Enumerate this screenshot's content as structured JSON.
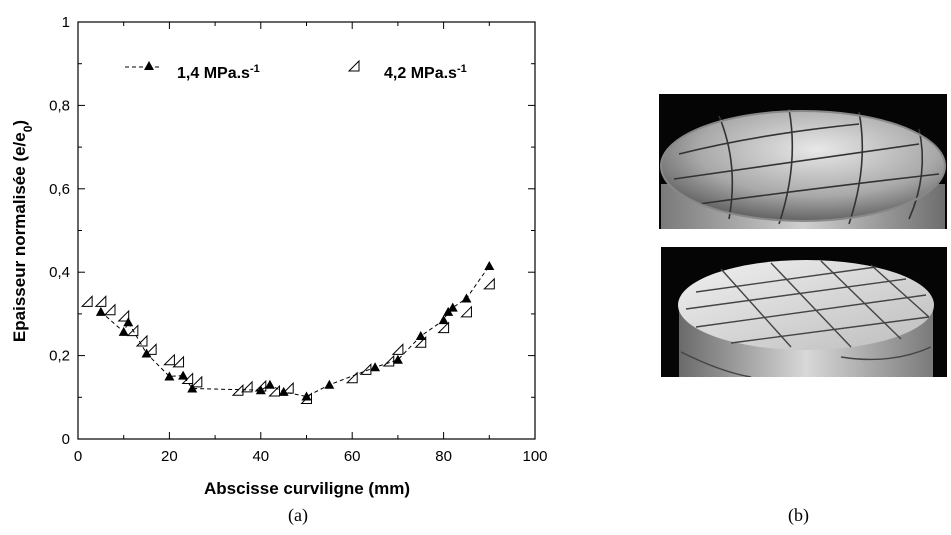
{
  "chart_data": {
    "type": "scatter",
    "xlabel": "Abscisse curviligne (mm)",
    "ylabel_main": "Epaisseur normalisée (e/e",
    "ylabel_sub": "0",
    "ylabel_end": ")",
    "xlim": [
      0,
      100
    ],
    "ylim": [
      0,
      1
    ],
    "x_ticks": [
      "0",
      "20",
      "40",
      "60",
      "80",
      "100"
    ],
    "y_ticks": [
      "0",
      "0,2",
      "0,4",
      "0,6",
      "0,8",
      "1"
    ],
    "grid": false,
    "legend_position": "top",
    "series": [
      {
        "name_main": "1,4 MPa.s",
        "name_sup": "-1",
        "marker": "filled-triangle",
        "line": "dashed",
        "points": [
          [
            5,
            0.305
          ],
          [
            10,
            0.257
          ],
          [
            11,
            0.28
          ],
          [
            15,
            0.205
          ],
          [
            20,
            0.15
          ],
          [
            23,
            0.152
          ],
          [
            25,
            0.121
          ],
          [
            40,
            0.117
          ],
          [
            42,
            0.13
          ],
          [
            45,
            0.113
          ],
          [
            50,
            0.102
          ],
          [
            55,
            0.13
          ],
          [
            65,
            0.172
          ],
          [
            70,
            0.19
          ],
          [
            75,
            0.247
          ],
          [
            80,
            0.285
          ],
          [
            81,
            0.305
          ],
          [
            82,
            0.315
          ],
          [
            85,
            0.337
          ],
          [
            90,
            0.415
          ]
        ]
      },
      {
        "name_main": "4,2 MPa.s",
        "name_sup": "-1",
        "marker": "open-triangle",
        "line": "none",
        "points": [
          [
            2,
            0.33
          ],
          [
            5,
            0.33
          ],
          [
            7,
            0.31
          ],
          [
            10,
            0.295
          ],
          [
            12,
            0.26
          ],
          [
            14,
            0.235
          ],
          [
            16,
            0.215
          ],
          [
            20,
            0.19
          ],
          [
            22,
            0.185
          ],
          [
            24,
            0.145
          ],
          [
            26,
            0.137
          ],
          [
            35,
            0.117
          ],
          [
            37,
            0.125
          ],
          [
            40,
            0.127
          ],
          [
            43,
            0.115
          ],
          [
            46,
            0.122
          ],
          [
            50,
            0.097
          ],
          [
            60,
            0.147
          ],
          [
            63,
            0.167
          ],
          [
            68,
            0.187
          ],
          [
            70,
            0.215
          ],
          [
            75,
            0.232
          ],
          [
            80,
            0.267
          ],
          [
            85,
            0.305
          ],
          [
            90,
            0.372
          ]
        ]
      }
    ]
  },
  "captions": {
    "a": "(a)",
    "b": "(b)"
  }
}
